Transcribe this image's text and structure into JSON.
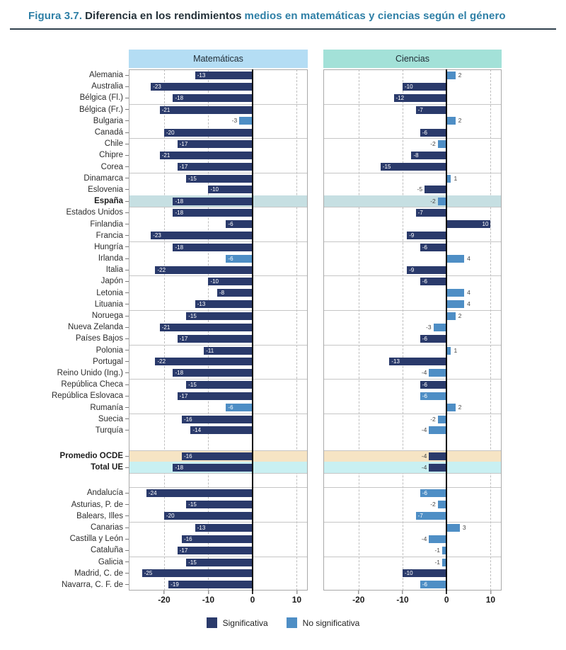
{
  "title": {
    "prefix": "Figura 3.7.",
    "dark": "Diferencia en los rendimientos",
    "teal": "medios en matemáticas y ciencias según el género"
  },
  "colors": {
    "navy": "#2A3A6B",
    "lightblue": "#4E8EC5",
    "espana": "#C6DFE2",
    "ocde": "#F6E4C4",
    "ue": "#C9F0F2",
    "mathHeader": "#B4DDF4",
    "sciHeader": "#A3E1D8",
    "teal": "#2E7FA6"
  },
  "chart_data": {
    "type": "bar",
    "orientation": "horizontal",
    "title": "Diferencia en los rendimientos medios en matemáticas y ciencias según el género",
    "panels": [
      "Matemáticas",
      "Ciencias"
    ],
    "xlim": [
      -28,
      12.5
    ],
    "xticks": [
      -20,
      -10,
      0,
      10
    ],
    "legend": [
      "Significativa",
      "No significativa"
    ],
    "rows": [
      {
        "label": "Alemania",
        "matematicas": -13,
        "matematicas_sig": true,
        "ciencias": 2,
        "ciencias_sig": false
      },
      {
        "label": "Australia",
        "matematicas": -23,
        "matematicas_sig": true,
        "ciencias": -10,
        "ciencias_sig": true
      },
      {
        "label": "Bélgica (Fl.)",
        "matematicas": -18,
        "matematicas_sig": true,
        "ciencias": -12,
        "ciencias_sig": true
      },
      {
        "label": "Bélgica (Fr.)",
        "matematicas": -21,
        "matematicas_sig": true,
        "ciencias": -7,
        "ciencias_sig": true,
        "sep": true
      },
      {
        "label": "Bulgaria",
        "matematicas": -3,
        "matematicas_sig": false,
        "ciencias": 2,
        "ciencias_sig": false
      },
      {
        "label": "Canadá",
        "matematicas": -20,
        "matematicas_sig": true,
        "ciencias": -6,
        "ciencias_sig": true
      },
      {
        "label": "Chile",
        "matematicas": -17,
        "matematicas_sig": true,
        "ciencias": -2,
        "ciencias_sig": false,
        "sep": true
      },
      {
        "label": "Chipre",
        "matematicas": -21,
        "matematicas_sig": true,
        "ciencias": -8,
        "ciencias_sig": true
      },
      {
        "label": "Corea",
        "matematicas": -17,
        "matematicas_sig": true,
        "ciencias": -15,
        "ciencias_sig": true
      },
      {
        "label": "Dinamarca",
        "matematicas": -15,
        "matematicas_sig": true,
        "ciencias": 1,
        "ciencias_sig": false,
        "sep": true
      },
      {
        "label": "Eslovenia",
        "matematicas": -10,
        "matematicas_sig": true,
        "ciencias": -5,
        "ciencias_sig": true
      },
      {
        "label": "España",
        "matematicas": -18,
        "matematicas_sig": true,
        "ciencias": -2,
        "ciencias_sig": false,
        "band": "espana",
        "bold": true
      },
      {
        "label": "Estados Unidos",
        "matematicas": -18,
        "matematicas_sig": true,
        "ciencias": -7,
        "ciencias_sig": true,
        "sep": true
      },
      {
        "label": "Finlandia",
        "matematicas": -6,
        "matematicas_sig": true,
        "ciencias": 10,
        "ciencias_sig": true
      },
      {
        "label": "Francia",
        "matematicas": -23,
        "matematicas_sig": true,
        "ciencias": -9,
        "ciencias_sig": true
      },
      {
        "label": "Hungría",
        "matematicas": -18,
        "matematicas_sig": true,
        "ciencias": -6,
        "ciencias_sig": true,
        "sep": true
      },
      {
        "label": "Irlanda",
        "matematicas": -6,
        "matematicas_sig": false,
        "ciencias": 4,
        "ciencias_sig": false
      },
      {
        "label": "Italia",
        "matematicas": -22,
        "matematicas_sig": true,
        "ciencias": -9,
        "ciencias_sig": true
      },
      {
        "label": "Japón",
        "matematicas": -10,
        "matematicas_sig": true,
        "ciencias": -6,
        "ciencias_sig": true,
        "sep": true
      },
      {
        "label": "Letonia",
        "matematicas": -8,
        "matematicas_sig": true,
        "ciencias": 4,
        "ciencias_sig": false
      },
      {
        "label": "Lituania",
        "matematicas": -13,
        "matematicas_sig": true,
        "ciencias": 4,
        "ciencias_sig": false
      },
      {
        "label": "Noruega",
        "matematicas": -15,
        "matematicas_sig": true,
        "ciencias": 2,
        "ciencias_sig": false,
        "sep": true
      },
      {
        "label": "Nueva Zelanda",
        "matematicas": -21,
        "matematicas_sig": true,
        "ciencias": -3,
        "ciencias_sig": false
      },
      {
        "label": "Países Bajos",
        "matematicas": -17,
        "matematicas_sig": true,
        "ciencias": -6,
        "ciencias_sig": true
      },
      {
        "label": "Polonia",
        "matematicas": -11,
        "matematicas_sig": true,
        "ciencias": 1,
        "ciencias_sig": false,
        "sep": true
      },
      {
        "label": "Portugal",
        "matematicas": -22,
        "matematicas_sig": true,
        "ciencias": -13,
        "ciencias_sig": true
      },
      {
        "label": "Reino Unido (Ing.)",
        "matematicas": -18,
        "matematicas_sig": true,
        "ciencias": -4,
        "ciencias_sig": false
      },
      {
        "label": "República Checa",
        "matematicas": -15,
        "matematicas_sig": true,
        "ciencias": -6,
        "ciencias_sig": true,
        "sep": true
      },
      {
        "label": "República Eslovaca",
        "matematicas": -17,
        "matematicas_sig": true,
        "ciencias": -6,
        "ciencias_sig": false
      },
      {
        "label": "Rumanía",
        "matematicas": -6,
        "matematicas_sig": false,
        "ciencias": 2,
        "ciencias_sig": false
      },
      {
        "label": "Suecia",
        "matematicas": -16,
        "matematicas_sig": true,
        "ciencias": -2,
        "ciencias_sig": false,
        "sep": true
      },
      {
        "label": "Turquía",
        "matematicas": -14,
        "matematicas_sig": true,
        "ciencias": -4,
        "ciencias_sig": false
      },
      {
        "spacer": 20
      },
      {
        "label": "Promedio OCDE",
        "matematicas": -16,
        "matematicas_sig": true,
        "ciencias": -4,
        "ciencias_sig": true,
        "band": "ocde",
        "bold": true,
        "sep": true
      },
      {
        "label": "Total UE",
        "matematicas": -18,
        "matematicas_sig": true,
        "ciencias": -4,
        "ciencias_sig": true,
        "band": "ue",
        "bold": true
      },
      {
        "spacer": 20,
        "sep": true
      },
      {
        "label": "Andalucía",
        "matematicas": -24,
        "matematicas_sig": true,
        "ciencias": -6,
        "ciencias_sig": false,
        "sep": true
      },
      {
        "label": "Asturias, P. de",
        "matematicas": -15,
        "matematicas_sig": true,
        "ciencias": -2,
        "ciencias_sig": false
      },
      {
        "label": "Balears, Illes",
        "matematicas": -20,
        "matematicas_sig": true,
        "ciencias": -7,
        "ciencias_sig": false
      },
      {
        "label": "Canarias",
        "matematicas": -13,
        "matematicas_sig": true,
        "ciencias": 3,
        "ciencias_sig": false,
        "sep": true
      },
      {
        "label": "Castilla y León",
        "matematicas": -16,
        "matematicas_sig": true,
        "ciencias": -4,
        "ciencias_sig": false
      },
      {
        "label": "Cataluña",
        "matematicas": -17,
        "matematicas_sig": true,
        "ciencias": -1,
        "ciencias_sig": false
      },
      {
        "label": "Galicia",
        "matematicas": -15,
        "matematicas_sig": true,
        "ciencias": -1,
        "ciencias_sig": false,
        "sep": true
      },
      {
        "label": "Madrid, C. de",
        "matematicas": -25,
        "matematicas_sig": true,
        "ciencias": -10,
        "ciencias_sig": true
      },
      {
        "label": "Navarra, C. F. de",
        "matematicas": -19,
        "matematicas_sig": true,
        "ciencias": -6,
        "ciencias_sig": false
      }
    ]
  }
}
